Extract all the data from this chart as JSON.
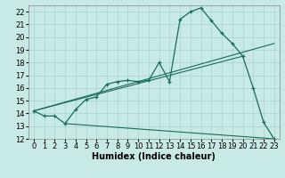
{
  "xlabel": "Humidex (Indice chaleur)",
  "background_color": "#c8eae4",
  "grid_color": "#a8d4ce",
  "line_color": "#1a6b5a",
  "xlim": [
    -0.5,
    23.5
  ],
  "ylim": [
    12,
    22.5
  ],
  "yticks": [
    12,
    13,
    14,
    15,
    16,
    17,
    18,
    19,
    20,
    21,
    22
  ],
  "xticks": [
    0,
    1,
    2,
    3,
    4,
    5,
    6,
    7,
    8,
    9,
    10,
    11,
    12,
    13,
    14,
    15,
    16,
    17,
    18,
    19,
    20,
    21,
    22,
    23
  ],
  "series1_x": [
    0,
    1,
    2,
    3,
    4,
    5,
    6,
    7,
    8,
    9,
    10,
    11,
    12,
    13,
    14,
    15,
    16,
    17,
    18,
    19,
    20,
    21,
    22,
    23
  ],
  "series1_y": [
    14.2,
    13.8,
    13.8,
    13.2,
    14.3,
    15.1,
    15.3,
    16.3,
    16.5,
    16.6,
    16.5,
    16.6,
    18.0,
    16.5,
    21.4,
    22.0,
    22.3,
    21.3,
    20.3,
    19.5,
    18.5,
    16.0,
    13.3,
    12.0
  ],
  "series2_x": [
    0,
    20
  ],
  "series2_y": [
    14.2,
    18.5
  ],
  "series3_x": [
    0,
    20
  ],
  "series3_y": [
    14.2,
    18.5
  ],
  "line2_x": [
    0,
    23
  ],
  "line2_y": [
    14.2,
    19.5
  ],
  "line3_x": [
    3,
    23
  ],
  "line3_y": [
    13.2,
    12.0
  ],
  "font_size_tick": 6,
  "font_size_label": 7
}
